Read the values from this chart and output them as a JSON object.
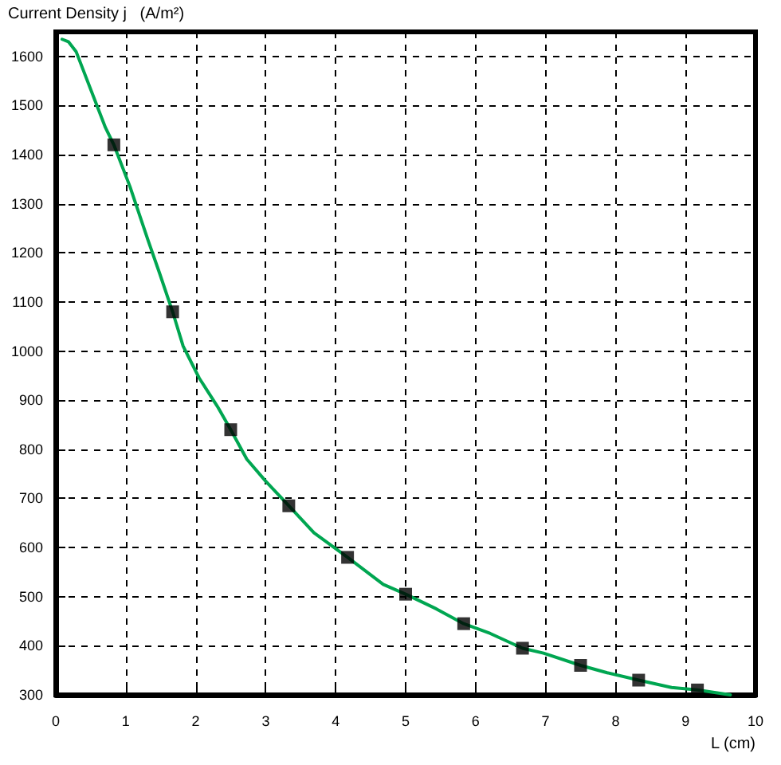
{
  "chart_data": {
    "type": "line",
    "ylabel": "Current Density j   (A/m²)",
    "xlabel": "L (cm)",
    "xlim": [
      0,
      10
    ],
    "xticks": [
      0,
      1,
      2,
      3,
      4,
      5,
      6,
      7,
      8,
      9,
      10
    ],
    "ylim": [
      300,
      1650
    ],
    "yticks": [
      300,
      400,
      500,
      600,
      700,
      800,
      900,
      1000,
      1100,
      1200,
      1300,
      1400,
      1500,
      1600
    ],
    "grid": true,
    "series": [
      {
        "color": "#00a651",
        "marker": "none",
        "x": [
          0.09,
          0.18,
          0.29,
          0.71,
          0.83,
          1.06,
          1.32,
          1.48,
          1.67,
          1.82,
          2.05,
          2.32,
          2.5,
          2.73,
          3.0,
          3.33,
          3.69,
          4.17,
          4.68,
          5.0,
          5.44,
          5.83,
          6.21,
          6.67,
          6.97,
          7.5,
          7.88,
          8.33,
          8.8,
          9.17,
          9.64
        ],
        "values": [
          1635,
          1630,
          1610,
          1455,
          1420,
          1335,
          1225,
          1160,
          1080,
          1010,
          945,
          885,
          840,
          780,
          735,
          685,
          630,
          580,
          525,
          505,
          475,
          445,
          425,
          395,
          385,
          360,
          345,
          330,
          315,
          310,
          300
        ]
      },
      {
        "type": "scatter",
        "color": "#000000",
        "marker": "square",
        "x": [
          0.83,
          1.67,
          2.5,
          3.33,
          4.17,
          5.0,
          5.83,
          6.67,
          7.5,
          8.33,
          9.17
        ],
        "values": [
          1420,
          1080,
          840,
          685,
          580,
          505,
          445,
          395,
          360,
          330,
          310
        ]
      }
    ]
  }
}
